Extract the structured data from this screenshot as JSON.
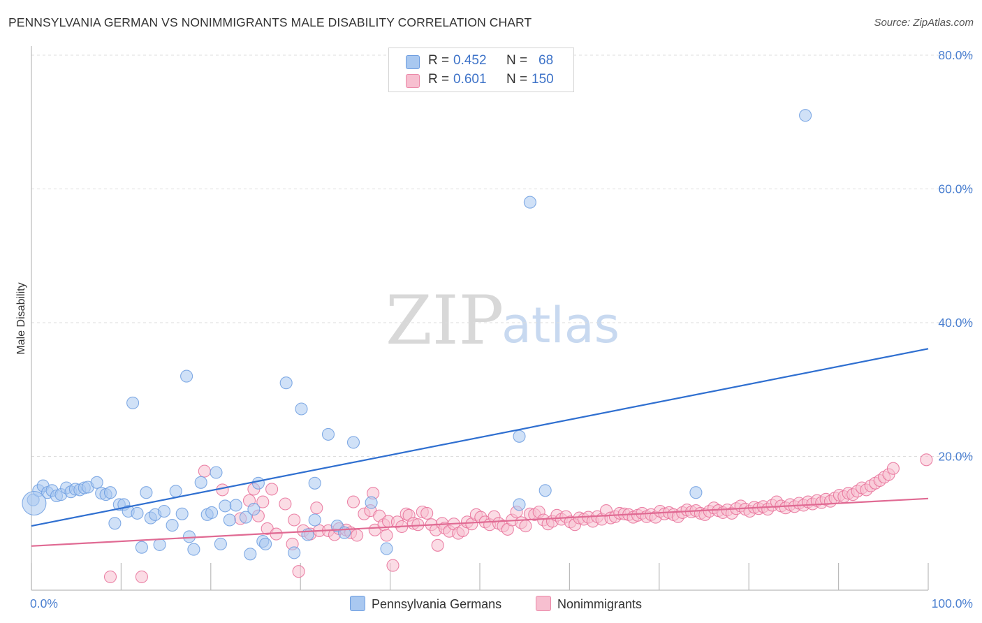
{
  "header": {
    "title": "PENNSYLVANIA GERMAN VS NONIMMIGRANTS MALE DISABILITY CORRELATION CHART",
    "source": "Source: ZipAtlas.com"
  },
  "legend_stats": [
    {
      "r_label": "R =",
      "r_value": "0.452",
      "n_label": "N =",
      "n_value": "68",
      "color": "#a9c8f0",
      "border": "#6d9de0"
    },
    {
      "r_label": "R =",
      "r_value": "0.601",
      "n_label": "N =",
      "n_value": "150",
      "color": "#f7bfd0",
      "border": "#eb88a8"
    }
  ],
  "bottom_legend": {
    "series1": "Pennsylvania Germans",
    "series2": "Nonimmigrants"
  },
  "watermark": {
    "zip": "ZIP",
    "atlas": "atlas"
  },
  "chart_data": {
    "type": "scatter",
    "title": "PENNSYLVANIA GERMAN VS NONIMMIGRANTS MALE DISABILITY CORRELATION CHART",
    "ylabel": "Male Disability",
    "xlabel": "",
    "xlim": [
      0,
      100
    ],
    "ylim": [
      0,
      80
    ],
    "x_tick_labels": [
      "0.0%",
      "100.0%"
    ],
    "y_ticks": [
      20,
      40,
      60,
      80
    ],
    "y_tick_labels": [
      "20.0%",
      "40.0%",
      "60.0%",
      "80.0%"
    ],
    "grid": true,
    "legend_placement": "top-center",
    "series": [
      {
        "name": "Pennsylvania Germans",
        "color": "#6d9de0",
        "fill": "#a9c8f0",
        "trend": {
          "x": [
            0,
            100
          ],
          "y": [
            9.6,
            36.1
          ]
        },
        "points": [
          [
            0.2,
            13.5
          ],
          [
            0.8,
            14.9
          ],
          [
            1.3,
            15.6
          ],
          [
            1.8,
            14.6
          ],
          [
            2.3,
            14.9
          ],
          [
            2.8,
            14.1
          ],
          [
            3.3,
            14.3
          ],
          [
            3.9,
            15.3
          ],
          [
            4.4,
            14.7
          ],
          [
            4.9,
            15.1
          ],
          [
            5.4,
            15.0
          ],
          [
            5.9,
            15.3
          ],
          [
            6.3,
            15.4
          ],
          [
            7.3,
            16.1
          ],
          [
            7.8,
            14.5
          ],
          [
            8.3,
            14.3
          ],
          [
            8.8,
            14.6
          ],
          [
            9.3,
            10.0
          ],
          [
            9.8,
            12.8
          ],
          [
            10.3,
            12.8
          ],
          [
            10.8,
            11.8
          ],
          [
            11.3,
            28.0
          ],
          [
            11.8,
            11.5
          ],
          [
            12.3,
            6.4
          ],
          [
            12.8,
            14.6
          ],
          [
            13.3,
            10.8
          ],
          [
            13.8,
            11.3
          ],
          [
            14.3,
            6.8
          ],
          [
            14.8,
            11.8
          ],
          [
            15.7,
            9.7
          ],
          [
            16.1,
            14.8
          ],
          [
            16.8,
            11.4
          ],
          [
            17.3,
            32.0
          ],
          [
            17.6,
            8.0
          ],
          [
            18.1,
            6.1
          ],
          [
            18.9,
            16.1
          ],
          [
            19.6,
            11.3
          ],
          [
            20.1,
            11.6
          ],
          [
            20.6,
            17.6
          ],
          [
            21.1,
            6.9
          ],
          [
            21.6,
            12.6
          ],
          [
            22.1,
            10.5
          ],
          [
            22.8,
            12.7
          ],
          [
            23.9,
            10.9
          ],
          [
            24.4,
            5.4
          ],
          [
            24.8,
            12.1
          ],
          [
            25.8,
            7.3
          ],
          [
            26.1,
            6.9
          ],
          [
            25.3,
            16.0
          ],
          [
            28.4,
            31.0
          ],
          [
            29.3,
            5.6
          ],
          [
            30.1,
            27.1
          ],
          [
            30.8,
            8.3
          ],
          [
            31.6,
            10.5
          ],
          [
            31.6,
            16.0
          ],
          [
            33.1,
            23.3
          ],
          [
            34.1,
            9.6
          ],
          [
            35.9,
            22.1
          ],
          [
            37.9,
            13.1
          ],
          [
            39.6,
            6.2
          ],
          [
            54.4,
            23.0
          ],
          [
            54.4,
            12.8
          ],
          [
            55.6,
            58.0
          ],
          [
            57.3,
            14.9
          ],
          [
            74.1,
            14.6
          ],
          [
            86.3,
            71.0
          ],
          [
            0.3,
            13.0
          ],
          [
            34.9,
            8.6
          ]
        ]
      },
      {
        "name": "Nonimmigrants",
        "color": "#e87099",
        "fill": "#f7bfd0",
        "trend": {
          "x": [
            0,
            100
          ],
          "y": [
            6.6,
            13.7
          ]
        },
        "points": [
          [
            8.8,
            2.0
          ],
          [
            12.3,
            2.0
          ],
          [
            19.3,
            17.8
          ],
          [
            21.3,
            15.0
          ],
          [
            23.3,
            10.7
          ],
          [
            24.3,
            13.4
          ],
          [
            24.8,
            15.1
          ],
          [
            25.3,
            11.1
          ],
          [
            25.8,
            13.2
          ],
          [
            26.3,
            9.2
          ],
          [
            26.8,
            15.1
          ],
          [
            27.3,
            8.4
          ],
          [
            28.3,
            12.9
          ],
          [
            29.1,
            6.9
          ],
          [
            29.3,
            10.5
          ],
          [
            29.8,
            2.8
          ],
          [
            30.3,
            8.9
          ],
          [
            31.1,
            8.4
          ],
          [
            31.8,
            12.3
          ],
          [
            32.1,
            8.9
          ],
          [
            33.1,
            8.9
          ],
          [
            33.8,
            8.3
          ],
          [
            34.3,
            9.2
          ],
          [
            35.1,
            9.0
          ],
          [
            35.6,
            8.6
          ],
          [
            36.3,
            8.2
          ],
          [
            35.9,
            13.2
          ],
          [
            37.1,
            11.4
          ],
          [
            37.8,
            11.9
          ],
          [
            38.1,
            14.5
          ],
          [
            38.3,
            9.0
          ],
          [
            38.8,
            11.1
          ],
          [
            39.3,
            9.8
          ],
          [
            39.6,
            8.2
          ],
          [
            39.8,
            10.3
          ],
          [
            40.3,
            3.7
          ],
          [
            40.8,
            10.2
          ],
          [
            41.3,
            9.5
          ],
          [
            41.8,
            11.4
          ],
          [
            42.1,
            11.2
          ],
          [
            42.6,
            10.0
          ],
          [
            43.1,
            9.8
          ],
          [
            43.6,
            11.7
          ],
          [
            44.1,
            11.5
          ],
          [
            44.6,
            9.8
          ],
          [
            45.1,
            9.0
          ],
          [
            45.3,
            6.7
          ],
          [
            45.8,
            10.0
          ],
          [
            46.1,
            9.3
          ],
          [
            46.6,
            8.8
          ],
          [
            47.1,
            9.9
          ],
          [
            47.6,
            8.5
          ],
          [
            48.1,
            8.9
          ],
          [
            48.6,
            10.2
          ],
          [
            49.1,
            9.9
          ],
          [
            49.6,
            11.3
          ],
          [
            50.1,
            10.9
          ],
          [
            50.6,
            10.2
          ],
          [
            51.1,
            9.8
          ],
          [
            51.6,
            11.0
          ],
          [
            52.1,
            10.0
          ],
          [
            52.6,
            9.6
          ],
          [
            53.1,
            9.1
          ],
          [
            53.6,
            10.5
          ],
          [
            54.1,
            11.7
          ],
          [
            54.6,
            10.1
          ],
          [
            55.1,
            9.6
          ],
          [
            55.6,
            11.4
          ],
          [
            56.1,
            11.3
          ],
          [
            56.6,
            11.7
          ],
          [
            57.1,
            10.5
          ],
          [
            57.6,
            9.9
          ],
          [
            58.1,
            10.3
          ],
          [
            58.6,
            11.2
          ],
          [
            59.1,
            10.6
          ],
          [
            59.6,
            11.0
          ],
          [
            60.1,
            10.2
          ],
          [
            60.6,
            9.8
          ],
          [
            61.1,
            10.8
          ],
          [
            61.6,
            10.6
          ],
          [
            62.1,
            10.9
          ],
          [
            62.6,
            10.3
          ],
          [
            63.1,
            11.0
          ],
          [
            63.6,
            10.6
          ],
          [
            64.1,
            11.9
          ],
          [
            64.6,
            10.8
          ],
          [
            65.1,
            11.0
          ],
          [
            65.6,
            11.5
          ],
          [
            66.1,
            11.4
          ],
          [
            66.6,
            11.3
          ],
          [
            67.1,
            10.9
          ],
          [
            67.6,
            11.2
          ],
          [
            68.1,
            11.5
          ],
          [
            68.6,
            11.0
          ],
          [
            69.1,
            11.3
          ],
          [
            69.6,
            10.9
          ],
          [
            70.1,
            11.8
          ],
          [
            70.6,
            11.4
          ],
          [
            71.1,
            11.6
          ],
          [
            71.6,
            11.3
          ],
          [
            72.1,
            11.0
          ],
          [
            72.6,
            11.6
          ],
          [
            73.1,
            12.0
          ],
          [
            73.6,
            11.7
          ],
          [
            74.1,
            11.9
          ],
          [
            74.6,
            11.5
          ],
          [
            75.1,
            11.3
          ],
          [
            75.6,
            11.8
          ],
          [
            76.1,
            12.3
          ],
          [
            76.6,
            11.9
          ],
          [
            77.1,
            11.6
          ],
          [
            77.6,
            12.0
          ],
          [
            78.1,
            11.5
          ],
          [
            78.6,
            12.2
          ],
          [
            79.1,
            12.6
          ],
          [
            79.6,
            12.1
          ],
          [
            80.1,
            11.8
          ],
          [
            80.6,
            12.4
          ],
          [
            81.1,
            12.2
          ],
          [
            81.6,
            12.5
          ],
          [
            82.1,
            12.1
          ],
          [
            82.6,
            12.7
          ],
          [
            83.1,
            13.2
          ],
          [
            83.6,
            12.6
          ],
          [
            84.1,
            12.3
          ],
          [
            84.6,
            12.8
          ],
          [
            85.1,
            12.5
          ],
          [
            85.6,
            13.0
          ],
          [
            86.1,
            12.7
          ],
          [
            86.6,
            13.2
          ],
          [
            87.1,
            12.9
          ],
          [
            87.6,
            13.4
          ],
          [
            88.1,
            13.1
          ],
          [
            88.6,
            13.6
          ],
          [
            89.1,
            13.3
          ],
          [
            89.6,
            13.8
          ],
          [
            90.1,
            14.2
          ],
          [
            90.6,
            14.0
          ],
          [
            91.1,
            14.5
          ],
          [
            91.6,
            14.3
          ],
          [
            92.1,
            14.8
          ],
          [
            92.6,
            15.3
          ],
          [
            93.1,
            15.0
          ],
          [
            93.6,
            15.6
          ],
          [
            94.1,
            16.0
          ],
          [
            94.6,
            16.4
          ],
          [
            95.1,
            16.9
          ],
          [
            95.6,
            17.3
          ],
          [
            96.1,
            18.2
          ],
          [
            99.8,
            19.5
          ]
        ]
      }
    ]
  }
}
